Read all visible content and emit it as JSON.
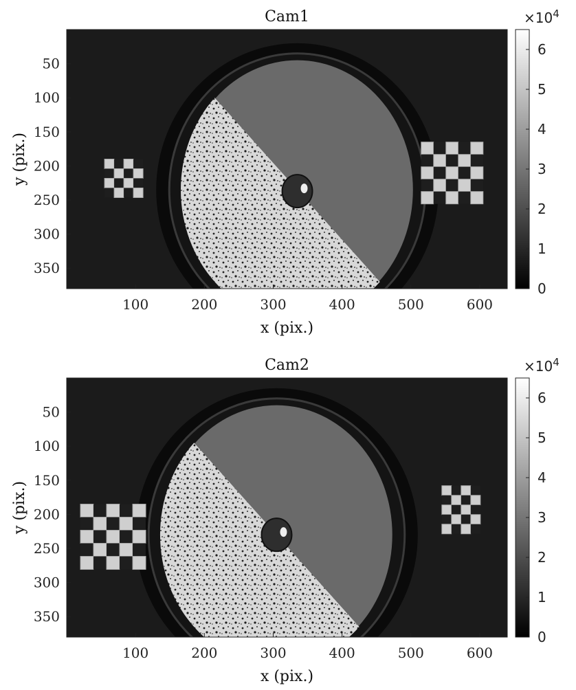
{
  "figure": {
    "panels": [
      {
        "title": "Cam1",
        "xlabel": "x (pix.)",
        "ylabel": "y (pix.)",
        "xticks": [
          100,
          200,
          300,
          400,
          500,
          600
        ],
        "yticks": [
          50,
          100,
          150,
          200,
          250,
          300,
          350
        ],
        "colorbar": {
          "ticks": [
            0,
            1,
            2,
            3,
            4,
            5,
            6
          ],
          "exponent_label": "×10",
          "exponent": "4"
        }
      },
      {
        "title": "Cam2",
        "xlabel": "x (pix.)",
        "ylabel": "y (pix.)",
        "xticks": [
          100,
          200,
          300,
          400,
          500,
          600
        ],
        "yticks": [
          50,
          100,
          150,
          200,
          250,
          300,
          350
        ],
        "colorbar": {
          "ticks": [
            0,
            1,
            2,
            3,
            4,
            5,
            6
          ],
          "exponent_label": "×10",
          "exponent": "4"
        }
      }
    ]
  },
  "colors": {
    "mesh": "#33ff33",
    "background": "#ffffff",
    "axis": "#222222"
  },
  "chart_data": [
    {
      "type": "heatmap",
      "title": "Cam1",
      "xlabel": "x (pix.)",
      "ylabel": "y (pix.)",
      "xlim": [
        0,
        640
      ],
      "ylim": [
        380,
        0
      ],
      "clim": [
        0,
        65000
      ],
      "colormap": "gray",
      "overlay": "green triangular mesh on lower half-disk",
      "xticks": [
        100,
        200,
        300,
        400,
        500,
        600
      ],
      "yticks": [
        50,
        100,
        150,
        200,
        250,
        300,
        350
      ],
      "colorbar_ticks": [
        0,
        1,
        2,
        3,
        4,
        5,
        6
      ],
      "colorbar_scale": "×10^4",
      "disk_center": [
        335,
        235
      ],
      "mesh_center": [
        335,
        237
      ],
      "mesh_radius": 122,
      "sphere_center": [
        335,
        237
      ]
    },
    {
      "type": "heatmap",
      "title": "Cam2",
      "xlabel": "x (pix.)",
      "ylabel": "y (pix.)",
      "xlim": [
        0,
        640
      ],
      "ylim": [
        380,
        0
      ],
      "clim": [
        0,
        65000
      ],
      "colormap": "gray",
      "overlay": "green triangular mesh on lower half-disk",
      "xticks": [
        100,
        200,
        300,
        400,
        500,
        600
      ],
      "yticks": [
        50,
        100,
        150,
        200,
        250,
        300,
        350
      ],
      "colorbar_ticks": [
        0,
        1,
        2,
        3,
        4,
        5,
        6
      ],
      "colorbar_scale": "×10^4",
      "disk_center": [
        305,
        230
      ],
      "mesh_center": [
        305,
        230
      ],
      "mesh_radius": 130,
      "sphere_center": [
        305,
        230
      ]
    }
  ]
}
